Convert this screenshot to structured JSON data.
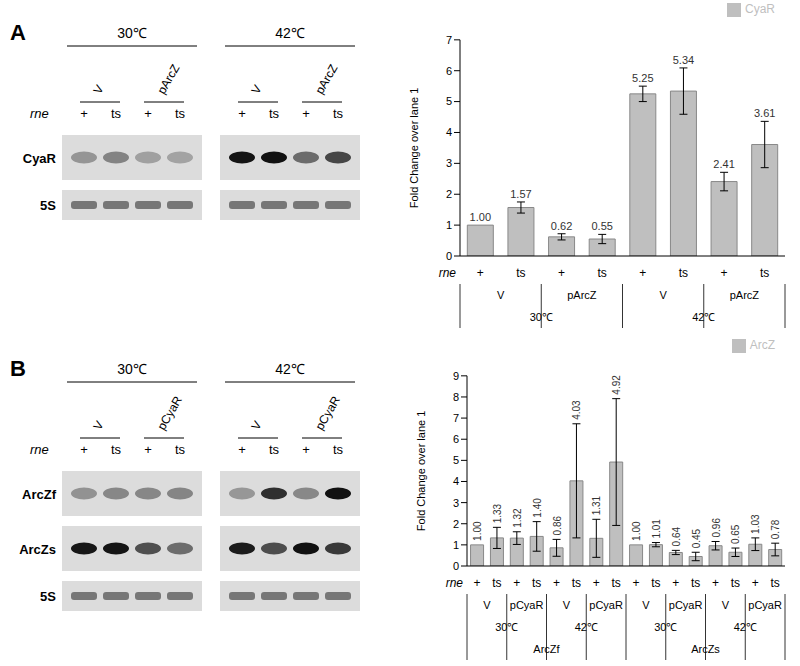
{
  "chart_data": [
    {
      "type": "bar",
      "y_label": "Fold Change over lane 1",
      "x_label": "rne",
      "categories": [
        "+",
        "ts",
        "+",
        "ts",
        "+",
        "ts",
        "+",
        "ts"
      ],
      "x_groups": [
        [
          "V",
          "pArcZ",
          "V",
          "pArcZ"
        ],
        [
          "30℃",
          "42℃"
        ]
      ],
      "series": [
        {
          "name": "CyaR",
          "color": "#bfbfbf",
          "values": [
            1.0,
            1.57,
            0.62,
            0.55,
            5.25,
            5.34,
            2.41,
            3.61
          ],
          "value_labels": [
            "1.00",
            "1.57",
            "0.62",
            "0.55",
            "5.25",
            "5.34",
            "2.41",
            "3.61"
          ],
          "errors": [
            0,
            0.18,
            0.1,
            0.15,
            0.25,
            0.75,
            0.3,
            0.75
          ]
        }
      ],
      "ylim": [
        0,
        7
      ],
      "yticks": [
        0,
        1,
        2,
        3,
        4,
        5,
        6,
        7
      ],
      "grid": false,
      "legend": "top-right",
      "data_labels": true
    },
    {
      "type": "bar",
      "y_label": "Fold Change over lane 1",
      "x_label": "rne",
      "categories": [
        "+",
        "ts",
        "+",
        "ts",
        "+",
        "ts",
        "+",
        "ts",
        "+",
        "ts",
        "+",
        "ts",
        "+",
        "ts",
        "+",
        "ts"
      ],
      "x_groups": [
        [
          "V",
          "pCyaR",
          "V",
          "pCyaR",
          "V",
          "pCyaR",
          "V",
          "pCyaR"
        ],
        [
          "30℃",
          "42℃",
          "30℃",
          "42℃"
        ],
        [
          "ArcZf",
          "ArcZs"
        ]
      ],
      "series": [
        {
          "name": "ArcZ",
          "color": "#bfbfbf",
          "values": [
            1.0,
            1.33,
            1.32,
            1.4,
            0.86,
            4.03,
            1.31,
            4.92,
            1.0,
            1.01,
            0.64,
            0.45,
            0.96,
            0.65,
            1.03,
            0.78
          ],
          "value_labels": [
            "1.00",
            "1.33",
            "1.32",
            "1.40",
            "0.86",
            "4.03",
            "1.31",
            "4.92",
            "1.00",
            "1.01",
            "0.64",
            "0.45",
            "0.96",
            "0.65",
            "1.03",
            "0.78"
          ],
          "errors": [
            0,
            0.5,
            0.3,
            0.7,
            0.4,
            2.7,
            0.9,
            3.0,
            0,
            0.1,
            0.1,
            0.2,
            0.2,
            0.2,
            0.3,
            0.3
          ]
        }
      ],
      "ylim": [
        0,
        9
      ],
      "yticks": [
        0,
        1,
        2,
        3,
        4,
        5,
        6,
        7,
        8,
        9
      ],
      "grid": false,
      "legend": "top-right",
      "data_labels": true
    }
  ],
  "blots": [
    {
      "label": "A",
      "row_label": "rne",
      "conditions": [
        {
          "label": "30℃",
          "groups": [
            "V",
            "pArcZ"
          ]
        },
        {
          "label": "42℃",
          "groups": [
            "V",
            "pArcZ"
          ]
        }
      ],
      "lanes": [
        "+",
        "ts"
      ],
      "rows": [
        "CyaR",
        "5S"
      ]
    },
    {
      "label": "B",
      "row_label": "rne",
      "conditions": [
        {
          "label": "30℃",
          "groups": [
            "V",
            "pCyaR"
          ]
        },
        {
          "label": "42℃",
          "groups": [
            "V",
            "pCyaR"
          ]
        }
      ],
      "lanes": [
        "+",
        "ts"
      ],
      "rows": [
        "ArcZf",
        "ArcZs",
        "5S"
      ]
    }
  ]
}
